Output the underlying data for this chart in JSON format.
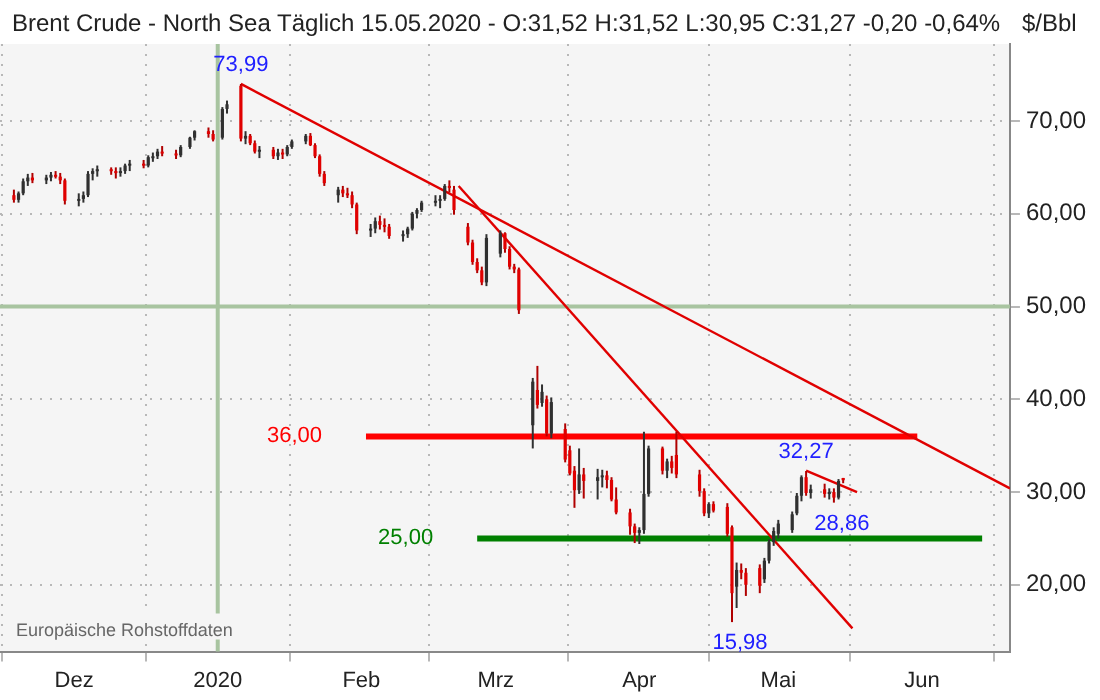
{
  "chart_data": {
    "type": "candlestick",
    "title": "Brent Crude - North Sea Täglich 15.05.2020 - O:31,52 H:31,52 L:30,95 C:31,27 -0,20 -0,64%",
    "ylabel": "$/Bbl",
    "x": [
      "2019-11-18",
      "2019-11-19",
      "2019-11-20",
      "2019-11-21",
      "2019-11-22",
      "2019-11-25",
      "2019-11-26",
      "2019-11-27",
      "2019-11-28",
      "2019-11-29",
      "2019-12-02",
      "2019-12-03",
      "2019-12-04",
      "2019-12-05",
      "2019-12-06",
      "2019-12-09",
      "2019-12-10",
      "2019-12-11",
      "2019-12-12",
      "2019-12-13",
      "2019-12-16",
      "2019-12-17",
      "2019-12-18",
      "2019-12-19",
      "2019-12-20",
      "2019-12-23",
      "2019-12-24",
      "2019-12-26",
      "2019-12-27",
      "2019-12-30",
      "2019-12-31",
      "2020-01-02",
      "2020-01-03",
      "2020-01-06",
      "2020-01-07",
      "2020-01-08",
      "2020-01-09",
      "2020-01-10",
      "2020-01-13",
      "2020-01-14",
      "2020-01-15",
      "2020-01-16",
      "2020-01-17",
      "2020-01-20",
      "2020-01-21",
      "2020-01-22",
      "2020-01-23",
      "2020-01-24",
      "2020-01-27",
      "2020-01-28",
      "2020-01-29",
      "2020-01-30",
      "2020-01-31",
      "2020-02-03",
      "2020-02-04",
      "2020-02-05",
      "2020-02-06",
      "2020-02-07",
      "2020-02-10",
      "2020-02-11",
      "2020-02-12",
      "2020-02-13",
      "2020-02-14",
      "2020-02-17",
      "2020-02-18",
      "2020-02-19",
      "2020-02-20",
      "2020-02-21",
      "2020-02-24",
      "2020-02-25",
      "2020-02-26",
      "2020-02-27",
      "2020-02-28",
      "2020-03-02",
      "2020-03-03",
      "2020-03-04",
      "2020-03-05",
      "2020-03-06",
      "2020-03-09",
      "2020-03-10",
      "2020-03-11",
      "2020-03-12",
      "2020-03-13",
      "2020-03-16",
      "2020-03-17",
      "2020-03-18",
      "2020-03-19",
      "2020-03-20",
      "2020-03-23",
      "2020-03-24",
      "2020-03-25",
      "2020-03-26",
      "2020-03-27",
      "2020-03-30",
      "2020-03-31",
      "2020-04-01",
      "2020-04-02",
      "2020-04-03",
      "2020-04-06",
      "2020-04-07",
      "2020-04-08",
      "2020-04-09",
      "2020-04-14",
      "2020-04-15",
      "2020-04-16",
      "2020-04-17",
      "2020-04-20",
      "2020-04-21",
      "2020-04-22",
      "2020-04-23",
      "2020-04-24",
      "2020-04-27",
      "2020-04-28",
      "2020-04-29",
      "2020-04-30",
      "2020-05-01",
      "2020-05-04",
      "2020-05-05",
      "2020-05-06",
      "2020-05-07",
      "2020-05-08",
      "2020-05-11",
      "2020-05-12",
      "2020-05-13",
      "2020-05-14",
      "2020-05-15"
    ],
    "ohlc": [
      [
        62.0,
        62.6,
        61.2,
        61.5
      ],
      [
        61.5,
        62.4,
        61.2,
        62.2
      ],
      [
        62.2,
        63.8,
        62.0,
        63.5
      ],
      [
        63.5,
        64.3,
        63.0,
        63.9
      ],
      [
        63.9,
        64.4,
        63.3,
        63.6
      ],
      [
        63.6,
        64.2,
        63.2,
        63.9
      ],
      [
        63.9,
        64.5,
        63.5,
        64.2
      ],
      [
        64.2,
        64.6,
        63.8,
        64.0
      ],
      [
        64.0,
        64.4,
        63.2,
        63.6
      ],
      [
        63.6,
        63.8,
        61.0,
        61.4
      ],
      [
        61.4,
        62.2,
        60.8,
        61.6
      ],
      [
        61.6,
        62.4,
        61.2,
        62.0
      ],
      [
        62.0,
        64.6,
        61.8,
        64.3
      ],
      [
        64.3,
        64.9,
        63.6,
        64.6
      ],
      [
        64.6,
        65.2,
        64.0,
        64.8
      ],
      [
        64.8,
        65.0,
        64.2,
        64.6
      ],
      [
        64.6,
        65.0,
        63.8,
        64.4
      ],
      [
        64.4,
        65.0,
        64.0,
        64.6
      ],
      [
        64.6,
        65.4,
        64.3,
        65.2
      ],
      [
        65.2,
        65.8,
        64.6,
        65.4
      ],
      [
        65.4,
        65.8,
        64.9,
        65.2
      ],
      [
        65.2,
        66.3,
        65.0,
        66.1
      ],
      [
        66.1,
        66.6,
        65.6,
        66.2
      ],
      [
        66.2,
        67.0,
        65.9,
        66.7
      ],
      [
        66.7,
        67.3,
        66.2,
        66.5
      ],
      [
        66.5,
        66.9,
        65.9,
        66.3
      ],
      [
        66.3,
        67.4,
        66.1,
        67.2
      ],
      [
        67.2,
        68.3,
        67.0,
        68.2
      ],
      [
        68.2,
        69.0,
        67.9,
        68.9
      ],
      [
        68.9,
        69.3,
        68.2,
        68.6
      ],
      [
        68.6,
        69.0,
        67.8,
        68.0
      ],
      [
        68.2,
        71.5,
        68.0,
        71.3
      ],
      [
        71.3,
        72.2,
        70.8,
        71.8
      ],
      [
        73.8,
        73.99,
        67.8,
        68.1
      ],
      [
        68.1,
        68.9,
        67.5,
        68.4
      ],
      [
        68.4,
        68.6,
        67.4,
        67.6
      ],
      [
        67.6,
        67.9,
        66.5,
        66.7
      ],
      [
        66.7,
        67.3,
        66.0,
        66.9
      ],
      [
        66.9,
        67.2,
        65.9,
        66.2
      ],
      [
        66.2,
        67.0,
        65.8,
        66.6
      ],
      [
        66.6,
        67.0,
        65.9,
        66.4
      ],
      [
        66.4,
        67.4,
        66.2,
        67.2
      ],
      [
        67.2,
        68.0,
        67.0,
        67.8
      ],
      [
        67.8,
        68.6,
        67.5,
        68.4
      ],
      [
        68.4,
        68.7,
        67.3,
        67.4
      ],
      [
        67.4,
        67.6,
        66.0,
        66.2
      ],
      [
        66.2,
        66.4,
        64.0,
        64.3
      ],
      [
        64.3,
        64.6,
        63.0,
        63.3
      ],
      [
        62.0,
        62.9,
        61.2,
        62.6
      ],
      [
        62.6,
        63.0,
        61.8,
        62.2
      ],
      [
        62.2,
        62.8,
        61.7,
        62.0
      ],
      [
        62.0,
        62.4,
        60.6,
        61.0
      ],
      [
        61.0,
        61.2,
        57.8,
        58.2
      ],
      [
        58.2,
        58.9,
        57.5,
        58.4
      ],
      [
        58.4,
        59.6,
        57.9,
        59.2
      ],
      [
        59.2,
        59.8,
        58.3,
        58.8
      ],
      [
        58.8,
        59.5,
        58.0,
        58.6
      ],
      [
        58.6,
        58.9,
        57.3,
        57.6
      ],
      [
        57.6,
        58.2,
        57.0,
        57.8
      ],
      [
        57.8,
        58.6,
        57.4,
        58.4
      ],
      [
        58.4,
        60.2,
        58.2,
        60.0
      ],
      [
        60.0,
        60.6,
        59.5,
        60.4
      ],
      [
        60.4,
        61.4,
        60.2,
        61.2
      ],
      [
        61.2,
        62.0,
        60.8,
        61.4
      ],
      [
        61.4,
        62.0,
        60.6,
        61.6
      ],
      [
        61.6,
        63.2,
        61.4,
        63.0
      ],
      [
        63.0,
        63.6,
        62.3,
        62.8
      ],
      [
        62.6,
        63.0,
        59.9,
        60.4
      ],
      [
        58.6,
        59.0,
        56.6,
        56.9
      ],
      [
        56.9,
        57.2,
        54.5,
        54.8
      ],
      [
        54.8,
        55.2,
        53.6,
        53.9
      ],
      [
        53.9,
        54.3,
        52.3,
        52.6
      ],
      [
        52.6,
        57.8,
        52.2,
        57.4
      ],
      [
        55.7,
        58.2,
        55.3,
        57.9
      ],
      [
        57.9,
        58.0,
        55.8,
        56.2
      ],
      [
        56.2,
        56.5,
        54.0,
        54.3
      ],
      [
        54.3,
        54.6,
        53.6,
        54.0
      ],
      [
        54.0,
        54.2,
        49.2,
        49.6
      ],
      [
        37.2,
        42.3,
        34.7,
        41.9
      ],
      [
        41.0,
        43.6,
        39.0,
        39.4
      ],
      [
        39.6,
        41.6,
        39.2,
        40.8
      ],
      [
        40.0,
        40.4,
        36.0,
        36.3
      ],
      [
        36.3,
        40.2,
        35.8,
        39.7
      ],
      [
        36.8,
        37.4,
        33.2,
        33.5
      ],
      [
        34.5,
        35.0,
        31.8,
        32.0
      ],
      [
        32.3,
        32.8,
        28.3,
        30.2
      ],
      [
        30.2,
        34.7,
        29.8,
        31.9
      ],
      [
        31.9,
        32.6,
        29.3,
        31.2
      ],
      [
        31.2,
        32.5,
        29.2,
        31.6
      ],
      [
        31.6,
        32.4,
        30.5,
        31.8
      ],
      [
        31.8,
        32.3,
        30.4,
        31.3
      ],
      [
        31.3,
        31.6,
        29.0,
        29.2
      ],
      [
        29.2,
        30.5,
        27.6,
        27.8
      ],
      [
        27.8,
        28.2,
        25.4,
        26.3
      ],
      [
        26.3,
        26.6,
        24.5,
        25.6
      ],
      [
        25.6,
        26.2,
        24.4,
        25.9
      ],
      [
        25.9,
        36.5,
        25.5,
        29.8
      ],
      [
        29.8,
        35.0,
        29.5,
        34.7
      ],
      [
        34.7,
        34.9,
        31.9,
        32.3
      ],
      [
        32.3,
        33.6,
        31.5,
        33.3
      ],
      [
        33.3,
        33.9,
        32.0,
        32.6
      ],
      [
        34.0,
        36.5,
        31.5,
        31.9
      ],
      [
        31.9,
        32.4,
        29.5,
        30.1
      ],
      [
        30.1,
        30.4,
        27.4,
        27.7
      ],
      [
        27.7,
        28.9,
        27.2,
        28.7
      ],
      [
        28.7,
        29.0,
        27.8,
        28.0
      ],
      [
        28.4,
        28.8,
        25.2,
        25.5
      ],
      [
        26.2,
        26.4,
        15.98,
        19.1
      ],
      [
        19.8,
        22.4,
        17.5,
        21.6
      ],
      [
        21.6,
        22.3,
        20.6,
        21.3
      ],
      [
        21.3,
        21.8,
        18.8,
        20.0
      ],
      [
        21.8,
        22.2,
        19.1,
        19.9
      ],
      [
        20.6,
        22.9,
        20.2,
        22.6
      ],
      [
        22.6,
        24.9,
        22.3,
        24.6
      ],
      [
        24.6,
        26.2,
        24.2,
        25.8
      ],
      [
        25.5,
        27.0,
        25.0,
        26.6
      ],
      [
        25.9,
        27.9,
        25.6,
        27.6
      ],
      [
        27.7,
        29.9,
        27.5,
        29.6
      ],
      [
        29.6,
        31.8,
        29.0,
        31.6
      ],
      [
        31.6,
        32.27,
        29.6,
        29.9
      ],
      [
        29.9,
        30.8,
        29.3,
        30.3
      ],
      [
        30.3,
        30.9,
        29.4,
        29.8
      ],
      [
        29.8,
        30.4,
        29.2,
        30.0
      ],
      [
        30.0,
        30.4,
        28.86,
        29.4
      ],
      [
        29.4,
        31.4,
        29.2,
        31.2
      ],
      [
        31.52,
        31.52,
        30.95,
        31.27
      ]
    ],
    "series": [
      {
        "type": "line",
        "color": "#e00000",
        "x": [
          "2020-01-06",
          "2020-06-20"
        ],
        "values": [
          74.0,
          30.4
        ]
      },
      {
        "type": "line",
        "color": "#e00000",
        "x": [
          "2020-02-22",
          "2020-05-17"
        ],
        "values": [
          63.0,
          15.3
        ]
      },
      {
        "type": "line",
        "color": "#e00000",
        "x": [
          "2020-05-07",
          "2020-05-18"
        ],
        "values": [
          32.3,
          30.0
        ]
      },
      {
        "type": "line",
        "color": "#a8c4a0",
        "x": [
          "2019-11-15",
          "2020-06-20"
        ],
        "values": [
          50,
          50
        ]
      },
      {
        "type": "line",
        "name": "36,00",
        "color": "#ff0000",
        "x": [
          "2020-02-02",
          "2020-05-31"
        ],
        "values": [
          36,
          36
        ]
      },
      {
        "type": "line",
        "name": "25,00",
        "color": "#008000",
        "x": [
          "2020-02-26",
          "2020-06-14"
        ],
        "values": [
          25,
          25
        ]
      }
    ],
    "xlim": [
      "2019-11-15",
      "2020-06-20"
    ],
    "xticks": [
      {
        "value": "2019-12-01",
        "label": "Dez"
      },
      {
        "value": "2020-01-01",
        "label": "2020"
      },
      {
        "value": "2020-02-01",
        "label": "Feb"
      },
      {
        "value": "2020-03-01",
        "label": "Mrz"
      },
      {
        "value": "2020-04-01",
        "label": "Apr"
      },
      {
        "value": "2020-05-01",
        "label": "Mai"
      },
      {
        "value": "2020-06-01",
        "label": "Jun"
      }
    ],
    "ylim": [
      12.8,
      78.3
    ],
    "yticks": [
      {
        "value": 20,
        "label": "20,00"
      },
      {
        "value": 30,
        "label": "30,00"
      },
      {
        "value": 40,
        "label": "40,00"
      },
      {
        "value": 50,
        "label": "50,00"
      },
      {
        "value": 60,
        "label": "60,00"
      },
      {
        "value": 70,
        "label": "70,00"
      }
    ],
    "ref_lines": [
      {
        "axis": "x",
        "value": "2020-01-01",
        "color": "#a8c4a0"
      }
    ],
    "grid": true,
    "legend": false,
    "marker": "none",
    "annotations": [
      "Europäische Rohstoffdaten",
      {
        "text": "73,99",
        "x": "2020-01-06",
        "y": 73.99
      },
      {
        "text": "15,98",
        "x": "2020-04-21",
        "y": 15.98
      },
      {
        "text": "32,27",
        "x": "2020-05-07",
        "y": 32.27
      },
      {
        "text": "28,86",
        "x": "2020-05-13",
        "y": 28.86
      }
    ]
  }
}
